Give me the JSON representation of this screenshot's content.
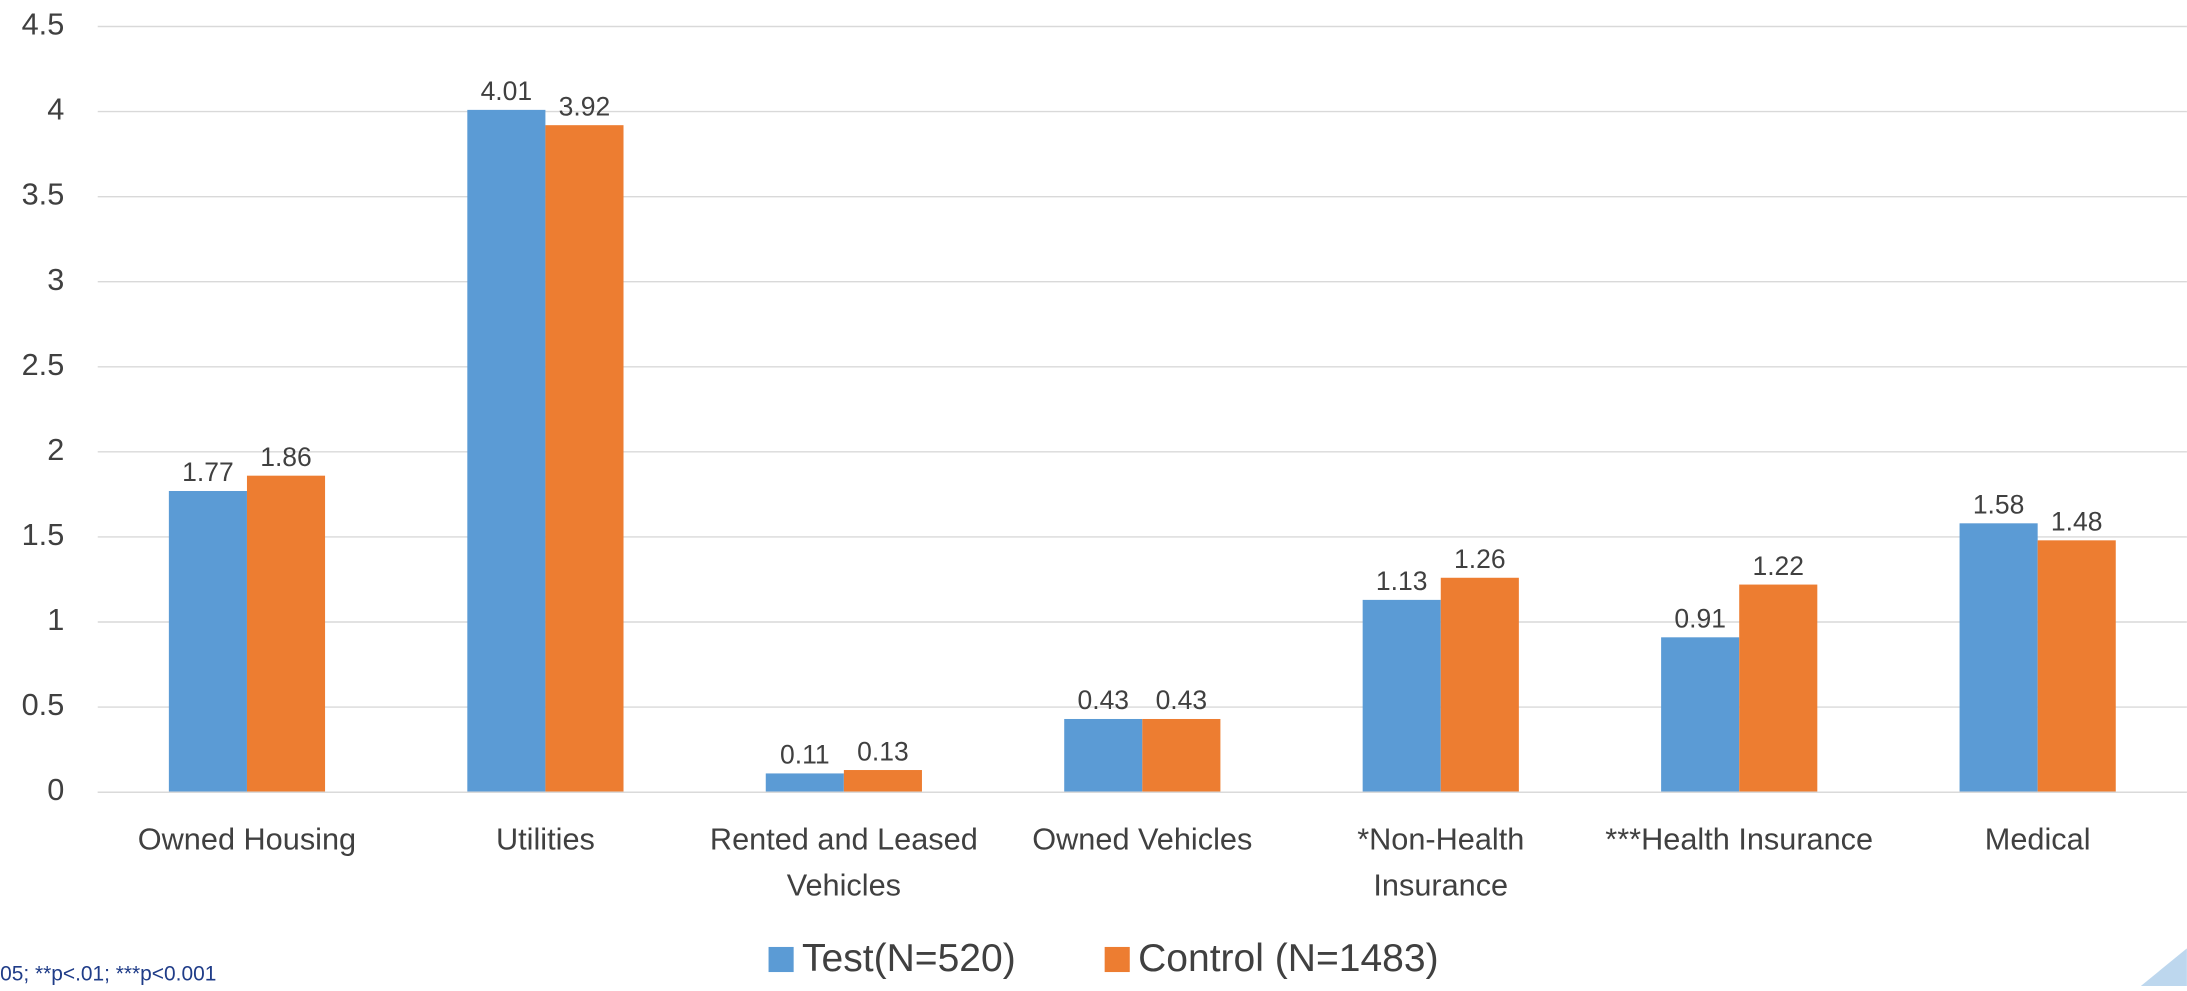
{
  "chart_data": {
    "type": "bar",
    "categories": [
      "Owned Housing",
      "Utilities",
      "Rented and Leased Vehicles",
      "Owned Vehicles",
      "*Non-Health Insurance",
      "***Health Insurance",
      "Medical"
    ],
    "series": [
      {
        "name": "Test(N=520)",
        "color": "#5b9bd5",
        "values": [
          1.77,
          4.01,
          0.11,
          0.43,
          1.13,
          0.91,
          1.58
        ]
      },
      {
        "name": "Control (N=1483)",
        "color": "#ed7d31",
        "values": [
          1.86,
          3.92,
          0.13,
          0.43,
          1.26,
          1.22,
          1.48
        ]
      }
    ],
    "ylim": [
      0,
      4.5
    ],
    "yticks": [
      0,
      0.5,
      1,
      1.5,
      2,
      2.5,
      3,
      3.5,
      4,
      4.5
    ],
    "grid": true,
    "legend": "bottom",
    "note": "05; **p<.01; ***p<0.001"
  }
}
